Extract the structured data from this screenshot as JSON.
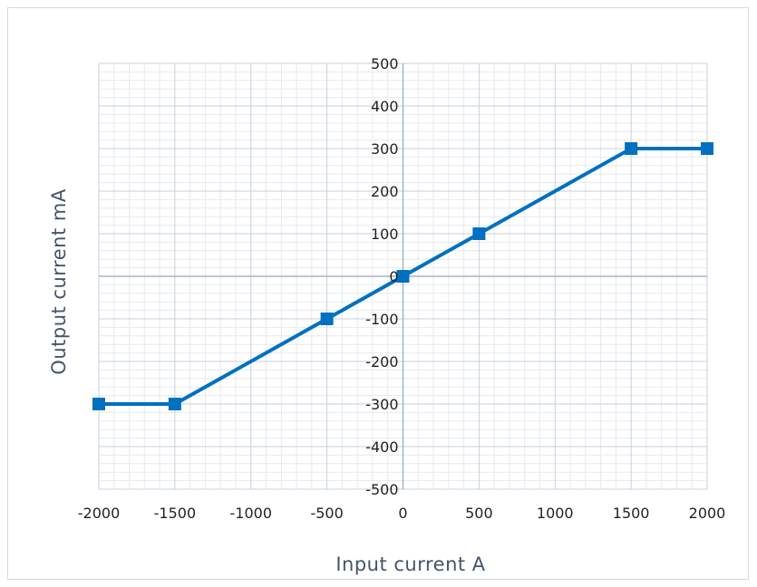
{
  "chart_data": {
    "type": "line",
    "title": "",
    "xlabel": "Input current A",
    "ylabel": "Output current  mA",
    "xlim": [
      -2000,
      2000
    ],
    "ylim": [
      -500,
      500
    ],
    "x_ticks": [
      -2000,
      -1500,
      -1000,
      -500,
      0,
      500,
      1000,
      1500,
      2000
    ],
    "y_ticks": [
      500,
      400,
      300,
      200,
      100,
      0,
      -100,
      -200,
      -300,
      -400,
      -500
    ],
    "x_tick_labels": [
      "-2000",
      "-1500",
      "-1000",
      "-500",
      "0",
      "500",
      "1000",
      "1500",
      "2000"
    ],
    "y_tick_labels": [
      "500",
      "400",
      "300",
      "200",
      "100",
      "0",
      "-100",
      "-200",
      "-300",
      "-400",
      "-500"
    ],
    "grid": true,
    "legend": "none",
    "series": [
      {
        "x": [
          -2000,
          -1500,
          -500,
          0,
          500,
          1500,
          2000
        ],
        "y": [
          -300,
          -300,
          -100,
          0,
          100,
          300,
          300
        ]
      }
    ],
    "colors": {
      "line": "#0070c0",
      "grid_major": "#c7d0dc",
      "grid_minor": "#e6e9ee",
      "axis": "#a5b4c8"
    }
  }
}
